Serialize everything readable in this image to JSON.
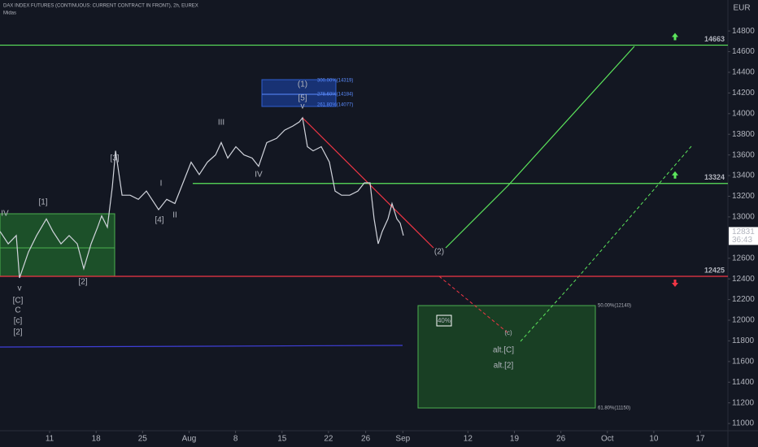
{
  "chart_data": {
    "type": "line",
    "title": "DAX INDEX FUTURES (CONTINUOUS: CURRENT CONTRACT IN FRONT), 2h, EUREX",
    "subtitle": "Midas",
    "currency": "EUR",
    "color": "#d1d4dc",
    "x": [
      -5.34,
      -4.46,
      -3.59,
      -3.24,
      -2.28,
      -1.4,
      -0.35,
      0.35,
      1.22,
      2.1,
      2.97,
      3.67,
      4.46,
      5.16,
      5.6,
      6.21,
      6.74,
      7.09,
      7.79,
      8.66,
      9.54,
      10.41,
      11.29,
      11.72,
      12.6,
      13.47,
      14.35,
      15.22,
      16.1,
      16.97,
      17.85,
      18.46,
      19.16,
      20.03,
      20.91,
      21.78,
      22.48,
      23.36,
      24.41,
      25.28,
      26.16,
      26.86,
      27.21,
      27.73,
      28.35,
      29.22,
      30.1,
      30.71,
      31.41,
      32.28,
      33.16,
      33.86,
      34.47,
      34.91,
      35.35,
      35.78,
      36.4,
      36.83,
      37.36,
      37.71,
      38.06
    ],
    "values": [
      12860,
      12740,
      12820,
      12410,
      12660,
      12820,
      12980,
      12860,
      12740,
      12820,
      12740,
      12500,
      12740,
      12900,
      13010,
      12900,
      13290,
      13640,
      13210,
      13210,
      13170,
      13250,
      13130,
      13070,
      13170,
      13130,
      13330,
      13530,
      13410,
      13530,
      13600,
      13720,
      13570,
      13680,
      13600,
      13570,
      13490,
      13720,
      13760,
      13840,
      13880,
      13920,
      13960,
      13680,
      13640,
      13680,
      13530,
      13250,
      13210,
      13210,
      13250,
      13330,
      13330,
      12980,
      12740,
      12860,
      12980,
      13130,
      12980,
      12940,
      12820
    ],
    "xlim": [
      -5.34,
      72.97
    ],
    "xticks": [
      {
        "value": 0,
        "label": "11"
      },
      {
        "value": 5,
        "label": "18"
      },
      {
        "value": 10,
        "label": "25"
      },
      {
        "value": 15,
        "label": "Aug"
      },
      {
        "value": 20,
        "label": "8"
      },
      {
        "value": 25,
        "label": "15"
      },
      {
        "value": 30,
        "label": "22"
      },
      {
        "value": 34,
        "label": "26"
      },
      {
        "value": 38,
        "label": "Sep"
      },
      {
        "value": 45,
        "label": "12"
      },
      {
        "value": 50,
        "label": "19"
      },
      {
        "value": 55,
        "label": "26"
      },
      {
        "value": 60,
        "label": "Oct"
      },
      {
        "value": 65,
        "label": "10"
      },
      {
        "value": 70,
        "label": "17"
      }
    ],
    "ylim": [
      10930,
      15100
    ],
    "yticks": [
      11000,
      11200,
      11400,
      11600,
      11800,
      12000,
      12200,
      12400,
      12600,
      13000,
      13200,
      13400,
      13600,
      13800,
      14000,
      14200,
      14400,
      14600,
      14800
    ],
    "levels": [
      {
        "value": 14663,
        "color": "#5ce65c"
      },
      {
        "value": 13324,
        "color": "#5ce65c"
      },
      {
        "value": 12425,
        "color": "#f23645"
      }
    ],
    "last_price": 12831,
    "countdown": "36:43",
    "annotations": [
      "IV",
      "v",
      "[C]",
      "C",
      "[c]",
      "[2]",
      "[1]",
      "[2]",
      "[3]",
      "I",
      "II",
      "[4]",
      "III",
      "IV",
      "(1)",
      "[5]",
      "v",
      "300.00%(14319)",
      "278.60%(14184)",
      "261.80%(14077)",
      "(2)",
      "40%",
      "(c)",
      "alt.[C]",
      "alt.[2]",
      "50.00%(12140)",
      "61.80%(11150)"
    ]
  }
}
